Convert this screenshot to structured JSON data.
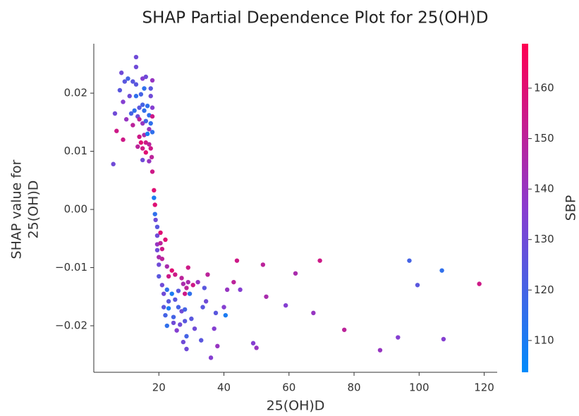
{
  "chart_data": {
    "type": "scatter",
    "title": "SHAP Partial Dependence Plot for 25(OH)D",
    "xlabel": "25(OH)D",
    "ylabel": [
      "SHAP value for",
      "25(OH)D"
    ],
    "colorbar_label": "SBP",
    "colormap": [
      "#008bfb",
      "#8a3ccf",
      "#ff0052"
    ],
    "xlim": [
      0,
      124
    ],
    "ylim": [
      -0.028,
      0.0285
    ],
    "clim": [
      103.7,
      168.8
    ],
    "xticks": [
      20,
      40,
      60,
      80,
      100,
      120
    ],
    "yticks": [
      {
        "value": 0.02,
        "label": "0.02"
      },
      {
        "value": 0.01,
        "label": "0.01"
      },
      {
        "value": 0,
        "label": "0.00"
      },
      {
        "value": -0.01,
        "label": "−0.01"
      },
      {
        "value": -0.02,
        "label": "−0.02"
      }
    ],
    "cticks": [
      110,
      120,
      130,
      140,
      150,
      160
    ],
    "x": [
      6,
      6.5,
      7,
      8,
      8.5,
      9,
      9,
      9.5,
      10,
      10.5,
      11,
      11.5,
      12,
      12,
      12.5,
      13,
      13,
      13,
      13,
      13.5,
      13.5,
      14,
      14,
      14,
      14.5,
      14.5,
      15,
      15,
      15,
      15,
      15,
      15.5,
      15.5,
      15.5,
      16,
      16,
      16,
      16,
      16.5,
      16.5,
      17,
      17,
      17,
      17,
      17.5,
      17.5,
      17.5,
      17.5,
      18,
      18,
      18,
      18,
      18,
      17.8,
      18.5,
      18.5,
      18.8,
      18.8,
      19,
      19.5,
      19.5,
      19.5,
      19.5,
      20,
      20,
      20,
      20.5,
      20.5,
      21,
      21,
      21,
      21.5,
      21.5,
      22,
      22,
      22.5,
      22.5,
      22.5,
      23,
      23,
      23,
      24,
      24,
      24.5,
      24.5,
      25,
      25,
      25.5,
      26,
      26,
      26.5,
      27,
      27,
      27.5,
      27.5,
      28,
      28,
      28,
      28.5,
      28.5,
      28.5,
      29,
      29,
      29.5,
      30,
      30.5,
      31,
      32,
      33,
      33.5,
      34,
      34.5,
      35,
      36,
      37,
      37.5,
      38,
      40,
      40.5,
      41,
      43,
      44,
      45,
      49,
      50,
      52,
      53,
      59,
      62,
      67.5,
      69.5,
      77,
      88,
      93.5,
      97,
      99.5,
      107,
      107.5,
      118.5
    ],
    "values": [
      0.0078,
      0.0165,
      0.0135,
      0.0205,
      0.0235,
      0.012,
      0.0185,
      0.022,
      0.0155,
      0.0225,
      0.0195,
      0.0165,
      0.0145,
      0.022,
      0.017,
      0.0262,
      0.0245,
      0.0215,
      0.0195,
      0.016,
      0.0108,
      0.0175,
      0.0155,
      0.0125,
      0.0198,
      0.0115,
      0.0225,
      0.018,
      0.0148,
      0.0105,
      0.0085,
      0.0208,
      0.017,
      0.0128,
      0.0228,
      0.0152,
      0.0115,
      0.0098,
      0.0178,
      0.013,
      0.0162,
      0.0138,
      0.0112,
      0.0083,
      0.0208,
      0.0195,
      0.0148,
      0.0105,
      0.0222,
      0.0175,
      0.016,
      0.0133,
      0.0065,
      0.009,
      0.0033,
      0.002,
      0.0008,
      -0.0008,
      -0.0018,
      -0.003,
      -0.0045,
      -0.006,
      -0.007,
      -0.0082,
      -0.0095,
      -0.0115,
      -0.004,
      -0.0058,
      -0.0068,
      -0.0085,
      -0.013,
      -0.0145,
      -0.0168,
      -0.0052,
      -0.0182,
      -0.0098,
      -0.0138,
      -0.02,
      -0.0115,
      -0.0158,
      -0.017,
      -0.0105,
      -0.0145,
      -0.0185,
      -0.0195,
      -0.0112,
      -0.0155,
      -0.0208,
      -0.014,
      -0.0168,
      -0.0198,
      -0.0118,
      -0.0175,
      -0.0128,
      -0.0228,
      -0.0145,
      -0.0172,
      -0.0192,
      -0.0135,
      -0.0218,
      -0.024,
      -0.01,
      -0.0125,
      -0.0145,
      -0.0188,
      -0.013,
      -0.0205,
      -0.0125,
      -0.0225,
      -0.0168,
      -0.0135,
      -0.0158,
      -0.0112,
      -0.0255,
      -0.0205,
      -0.0178,
      -0.0235,
      -0.0168,
      -0.0182,
      -0.0138,
      -0.0125,
      -0.0088,
      -0.0138,
      -0.023,
      -0.0238,
      -0.0095,
      -0.015,
      -0.0165,
      -0.011,
      -0.0178,
      -0.0088,
      -0.0207,
      -0.0242,
      -0.022,
      -0.0088,
      -0.013,
      -0.0105,
      -0.0223,
      -0.0128
    ],
    "color_values": [
      130,
      130,
      155,
      125,
      130,
      155,
      135,
      125,
      140,
      120,
      130,
      120,
      150,
      125,
      115,
      130,
      130,
      125,
      115,
      130,
      150,
      125,
      150,
      155,
      120,
      160,
      135,
      120,
      140,
      155,
      130,
      115,
      115,
      145,
      130,
      120,
      155,
      160,
      115,
      110,
      115,
      140,
      150,
      140,
      125,
      130,
      115,
      155,
      140,
      135,
      155,
      115,
      155,
      150,
      160,
      110,
      160,
      115,
      130,
      125,
      130,
      140,
      130,
      145,
      130,
      125,
      160,
      150,
      155,
      150,
      130,
      130,
      125,
      160,
      120,
      145,
      115,
      115,
      155,
      125,
      110,
      160,
      110,
      120,
      130,
      155,
      125,
      135,
      125,
      120,
      130,
      150,
      130,
      145,
      130,
      155,
      120,
      125,
      150,
      120,
      130,
      155,
      145,
      115,
      125,
      155,
      130,
      140,
      125,
      125,
      125,
      130,
      150,
      135,
      135,
      125,
      140,
      135,
      110,
      140,
      150,
      155,
      135,
      135,
      140,
      150,
      145,
      135,
      145,
      140,
      155,
      150,
      140,
      135,
      120,
      125,
      115,
      135,
      155
    ]
  }
}
